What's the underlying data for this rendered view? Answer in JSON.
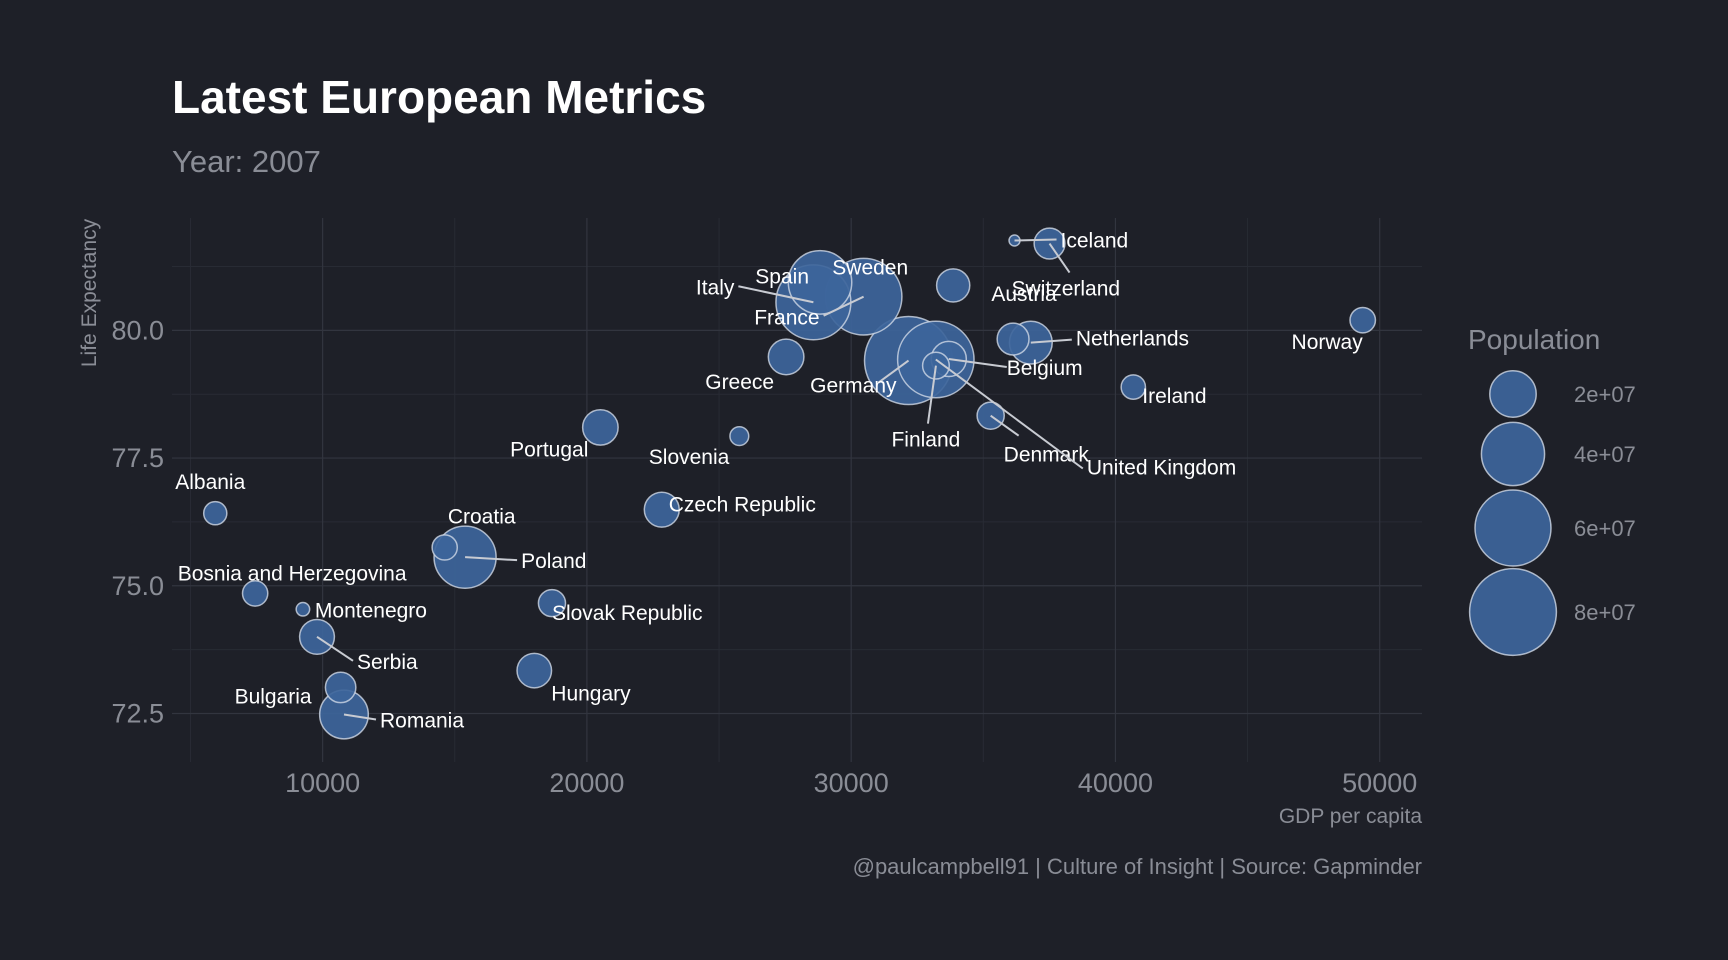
{
  "title": "Latest European Metrics",
  "subtitle": "Year: 2007",
  "caption": "@paulcampbell91 | Culture of Insight | Source: Gapminder",
  "chart_data": {
    "type": "scatter",
    "xlabel": "GDP per capita",
    "ylabel": "Life Expectancy",
    "xlim": [
      4300,
      51600
    ],
    "ylim": [
      71.55,
      82.2
    ],
    "x_ticks": [
      10000,
      20000,
      30000,
      40000,
      50000
    ],
    "x_tick_labels": [
      "10000",
      "20000",
      "30000",
      "40000",
      "50000"
    ],
    "y_ticks": [
      72.5,
      75.0,
      77.5,
      80.0
    ],
    "y_tick_labels": [
      "72.5",
      "75.0",
      "77.5",
      "80.0"
    ],
    "grid": true,
    "bubble_color": "#3d659b",
    "background": "#1e2028",
    "size_legend": {
      "title": "Population",
      "values": [
        20000000,
        40000000,
        60000000,
        80000000
      ],
      "labels": [
        "2e+07",
        "4e+07",
        "6e+07",
        "8e+07"
      ]
    },
    "points": [
      {
        "country": "Albania",
        "gdp": 5937,
        "life_exp": 76.42,
        "pop": 3600000
      },
      {
        "country": "Austria",
        "gdp": 36126,
        "life_exp": 79.83,
        "pop": 8199783
      },
      {
        "country": "Belgium",
        "gdp": 33693,
        "life_exp": 79.44,
        "pop": 10392226
      },
      {
        "country": "Bosnia and Herzegovina",
        "gdp": 7446,
        "life_exp": 74.85,
        "pop": 4552198
      },
      {
        "country": "Bulgaria",
        "gdp": 10681,
        "life_exp": 73.01,
        "pop": 7322858
      },
      {
        "country": "Croatia",
        "gdp": 14619,
        "life_exp": 75.75,
        "pop": 4493312
      },
      {
        "country": "Czech Republic",
        "gdp": 22833,
        "life_exp": 76.49,
        "pop": 10228744
      },
      {
        "country": "Denmark",
        "gdp": 35278,
        "life_exp": 78.33,
        "pop": 5468120
      },
      {
        "country": "Finland",
        "gdp": 33207,
        "life_exp": 79.31,
        "pop": 5238460
      },
      {
        "country": "France",
        "gdp": 30470,
        "life_exp": 80.66,
        "pop": 61083916
      },
      {
        "country": "Germany",
        "gdp": 32170,
        "life_exp": 79.41,
        "pop": 82400996
      },
      {
        "country": "Greece",
        "gdp": 27538,
        "life_exp": 79.48,
        "pop": 10706290
      },
      {
        "country": "Hungary",
        "gdp": 18009,
        "life_exp": 73.34,
        "pop": 9956108
      },
      {
        "country": "Iceland",
        "gdp": 36181,
        "life_exp": 81.76,
        "pop": 301931
      },
      {
        "country": "Ireland",
        "gdp": 40676,
        "life_exp": 78.89,
        "pop": 4109086
      },
      {
        "country": "Italy",
        "gdp": 28570,
        "life_exp": 80.55,
        "pop": 58147733
      },
      {
        "country": "Montenegro",
        "gdp": 9254,
        "life_exp": 74.54,
        "pop": 684736
      },
      {
        "country": "Netherlands",
        "gdp": 36798,
        "life_exp": 79.76,
        "pop": 16570613
      },
      {
        "country": "Norway",
        "gdp": 49357,
        "life_exp": 80.2,
        "pop": 4627926
      },
      {
        "country": "Poland",
        "gdp": 15390,
        "life_exp": 75.56,
        "pop": 38518241
      },
      {
        "country": "Portugal",
        "gdp": 20510,
        "life_exp": 78.1,
        "pop": 10642836
      },
      {
        "country": "Romania",
        "gdp": 10808,
        "life_exp": 72.48,
        "pop": 22276056
      },
      {
        "country": "Serbia",
        "gdp": 9787,
        "life_exp": 74.0,
        "pop": 10150265
      },
      {
        "country": "Slovak Republic",
        "gdp": 18678,
        "life_exp": 74.66,
        "pop": 5447502
      },
      {
        "country": "Slovenia",
        "gdp": 25768,
        "life_exp": 77.93,
        "pop": 2009245
      },
      {
        "country": "Spain",
        "gdp": 28821,
        "life_exp": 80.94,
        "pop": 40448191
      },
      {
        "country": "Sweden",
        "gdp": 33860,
        "life_exp": 80.88,
        "pop": 9031088
      },
      {
        "country": "Switzerland",
        "gdp": 37506,
        "life_exp": 81.7,
        "pop": 7554661
      },
      {
        "country": "United Kingdom",
        "gdp": 33203,
        "life_exp": 79.43,
        "pop": 60776238
      }
    ]
  }
}
